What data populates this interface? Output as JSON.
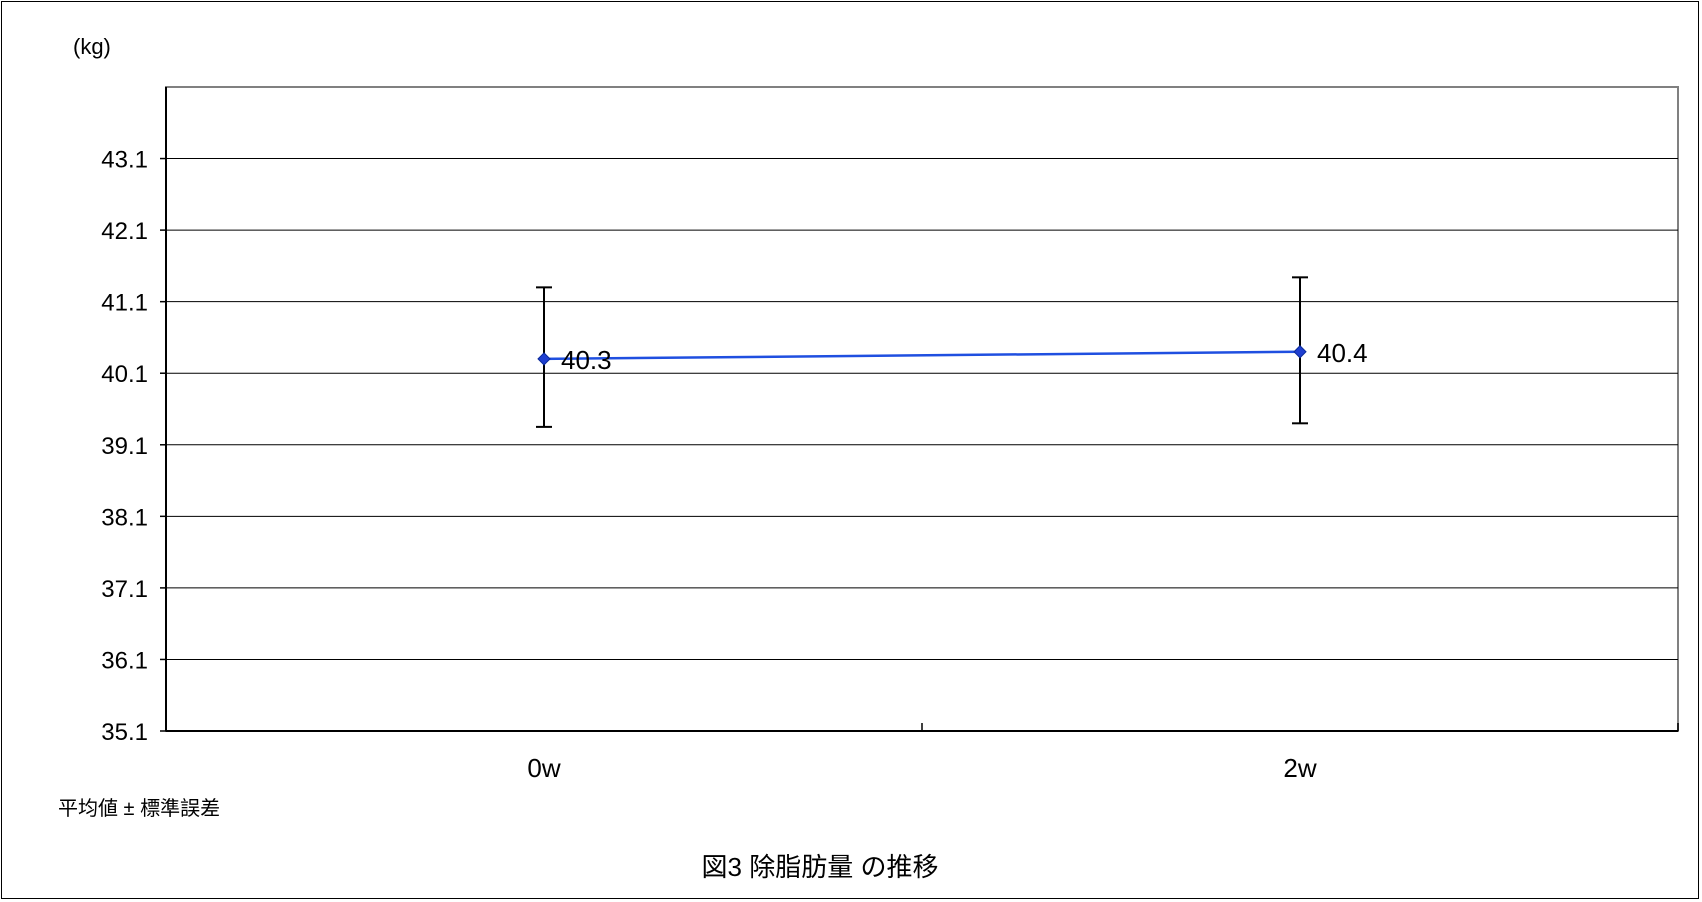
{
  "chart_data": {
    "type": "line",
    "title": "図3 除脂肪量 の推移",
    "ylabel": "(kg)",
    "xlabel": "",
    "note": "平均値 ± 標準誤差",
    "categories": [
      "0w",
      "2w"
    ],
    "series": [
      {
        "values": [
          40.3,
          40.4
        ],
        "error_upper": [
          41.3,
          41.44
        ],
        "error_lower": [
          39.35,
          39.4
        ],
        "data_labels": [
          "40.3",
          "40.4"
        ],
        "color": "#1f4fe0",
        "marker": "diamond"
      }
    ],
    "ylim": [
      35.1,
      44.1
    ],
    "yticks": [
      35.1,
      36.1,
      37.1,
      38.1,
      39.1,
      40.1,
      41.1,
      42.1,
      43.1
    ],
    "ytick_labels": [
      "35.1",
      "36.1",
      "37.1",
      "38.1",
      "39.1",
      "40.1",
      "41.1",
      "42.1",
      "43.1"
    ],
    "grid": true,
    "legend": "none"
  },
  "colors": {
    "line": "#1f4fe0",
    "marker_fill": "#1f3fd0",
    "grid": "#000000",
    "axis": "#000000"
  }
}
